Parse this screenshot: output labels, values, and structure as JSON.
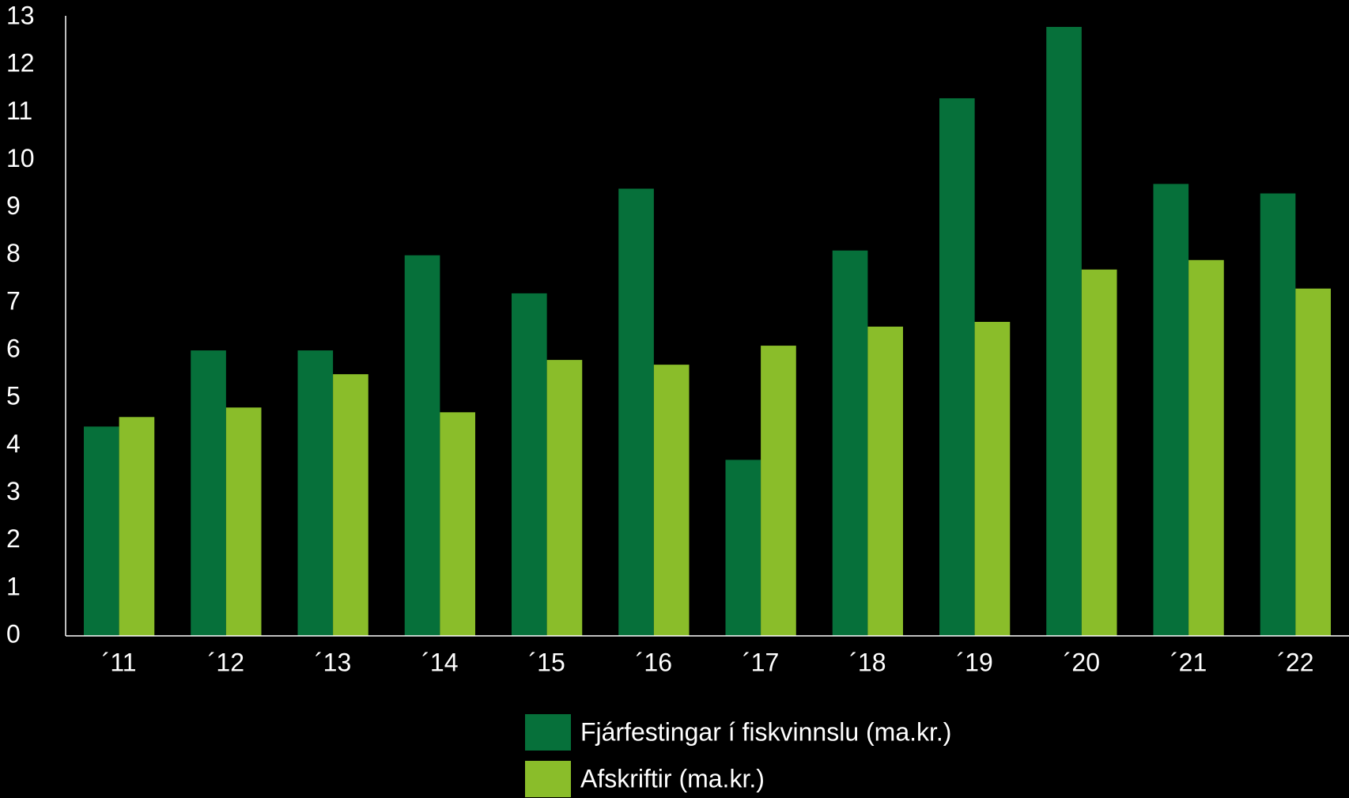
{
  "chart_data": {
    "type": "bar",
    "categories": [
      "´11",
      "´12",
      "´13",
      "´14",
      "´15",
      "´16",
      "´17",
      "´18",
      "´19",
      "´20",
      "´21",
      "´22"
    ],
    "series": [
      {
        "name": "Fjárfestingar í fiskvinnslu (ma.kr.)",
        "color": "#06703a",
        "values": [
          4.4,
          6.0,
          6.0,
          8.0,
          7.2,
          9.4,
          3.7,
          8.1,
          11.3,
          12.8,
          9.5,
          9.3
        ]
      },
      {
        "name": "Afskriftir (ma.kr.)",
        "color": "#8abd2a",
        "values": [
          4.6,
          4.8,
          5.5,
          4.7,
          5.8,
          5.7,
          6.1,
          6.5,
          6.6,
          7.7,
          7.9,
          7.3
        ]
      }
    ],
    "ylim": [
      0,
      13
    ],
    "yticks": [
      0,
      1,
      2,
      3,
      4,
      5,
      6,
      7,
      8,
      9,
      10,
      11,
      12,
      13
    ],
    "grid": false
  }
}
